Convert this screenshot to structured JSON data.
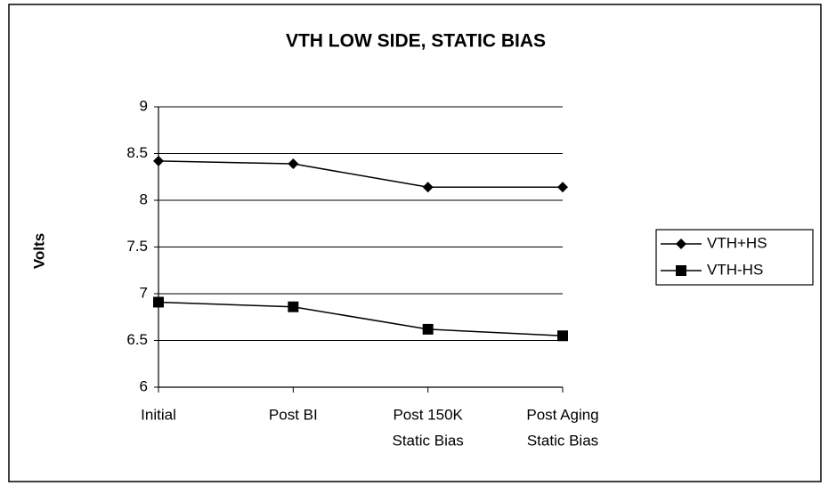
{
  "chart_data": {
    "type": "line",
    "title": "VTH LOW SIDE, STATIC BIAS",
    "y_label": "Volts",
    "categories": [
      [
        "Initial"
      ],
      [
        "Post BI"
      ],
      [
        "Post 150K",
        "Static Bias"
      ],
      [
        "Post Aging",
        "Static Bias"
      ]
    ],
    "series": [
      {
        "name": "VTH+HS",
        "color": "#000000",
        "marker": "diamond",
        "values": [
          8.42,
          8.39,
          8.14,
          8.14
        ]
      },
      {
        "name": "VTH-HS",
        "color": "#000000",
        "marker": "square",
        "values": [
          6.91,
          6.86,
          6.62,
          6.55
        ]
      }
    ],
    "ylim": [
      6,
      9
    ],
    "yticks": [
      6,
      6.5,
      7,
      7.5,
      8,
      8.5,
      9
    ],
    "grid": true,
    "legend": "right"
  }
}
